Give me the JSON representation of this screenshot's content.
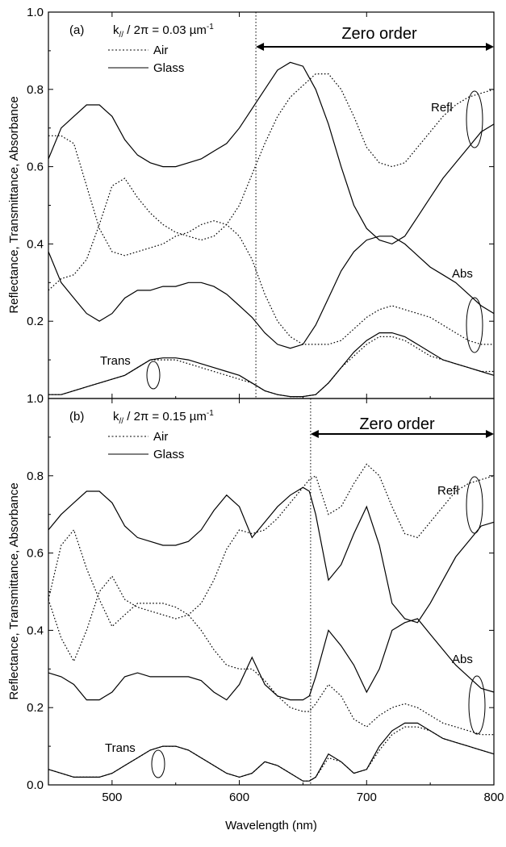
{
  "figure": {
    "y_axis_label": "Reflectance, Transmittance, Absorbance",
    "x_axis_label": "Wavelength (nm)"
  },
  "chart_data": [
    {
      "type": "line",
      "panel_label": "(a)",
      "k_label": "k// / 2π = 0.03 µm⁻¹",
      "k_label_parts": {
        "k": "k",
        "sub": "//",
        "rest": " / 2π = 0.03 µm",
        "sup": "-1"
      },
      "legend": [
        "Air",
        "Glass"
      ],
      "zero_order_label": "Zero order",
      "zero_order_start": 613,
      "xlim": [
        450,
        800
      ],
      "ylim": [
        0.0,
        1.0
      ],
      "y_ticks": [
        0.2,
        0.4,
        0.6,
        0.8,
        1.0
      ],
      "y_tick_labels": [
        "0.2",
        "0.4",
        "0.6",
        "0.8",
        "1.0"
      ],
      "bottom_tick_label": "1.0",
      "annotations": [
        "Refl",
        "Abs",
        "Trans"
      ],
      "series": [
        {
          "name": "Air",
          "quantity": "Refl",
          "style": "dotted",
          "x": [
            450,
            460,
            470,
            480,
            490,
            500,
            510,
            520,
            530,
            540,
            550,
            560,
            570,
            580,
            590,
            600,
            610,
            620,
            630,
            640,
            650,
            660,
            670,
            680,
            690,
            700,
            710,
            720,
            730,
            740,
            750,
            760,
            770,
            780,
            790,
            800
          ],
          "y": [
            0.28,
            0.31,
            0.32,
            0.36,
            0.45,
            0.55,
            0.57,
            0.52,
            0.48,
            0.45,
            0.43,
            0.42,
            0.41,
            0.42,
            0.45,
            0.5,
            0.58,
            0.66,
            0.73,
            0.78,
            0.81,
            0.84,
            0.84,
            0.8,
            0.73,
            0.65,
            0.61,
            0.6,
            0.61,
            0.65,
            0.69,
            0.73,
            0.76,
            0.78,
            0.79,
            0.8
          ]
        },
        {
          "name": "Air",
          "quantity": "Abs",
          "style": "dotted",
          "x": [
            450,
            460,
            470,
            480,
            490,
            500,
            510,
            520,
            530,
            540,
            550,
            560,
            570,
            580,
            590,
            600,
            610,
            620,
            630,
            640,
            650,
            660,
            670,
            680,
            690,
            700,
            710,
            720,
            730,
            740,
            750,
            760,
            770,
            780,
            790,
            800
          ],
          "y": [
            0.68,
            0.68,
            0.66,
            0.55,
            0.44,
            0.38,
            0.37,
            0.38,
            0.39,
            0.4,
            0.42,
            0.43,
            0.45,
            0.46,
            0.45,
            0.42,
            0.36,
            0.27,
            0.2,
            0.16,
            0.14,
            0.14,
            0.14,
            0.15,
            0.18,
            0.21,
            0.23,
            0.24,
            0.23,
            0.22,
            0.21,
            0.19,
            0.17,
            0.15,
            0.14,
            0.14
          ]
        },
        {
          "name": "Air",
          "quantity": "Trans",
          "style": "dotted",
          "x": [
            450,
            460,
            470,
            480,
            490,
            500,
            510,
            520,
            530,
            540,
            550,
            560,
            570,
            580,
            590,
            600,
            610,
            620,
            630,
            640,
            650,
            660,
            670,
            680,
            690,
            700,
            710,
            720,
            730,
            740,
            750,
            760,
            770,
            780,
            790,
            800
          ],
          "y": [
            0.01,
            0.01,
            0.02,
            0.03,
            0.04,
            0.05,
            0.06,
            0.08,
            0.1,
            0.1,
            0.1,
            0.09,
            0.08,
            0.07,
            0.06,
            0.05,
            0.04,
            0.02,
            0.01,
            0.005,
            0.005,
            0.01,
            0.04,
            0.08,
            0.11,
            0.14,
            0.16,
            0.16,
            0.15,
            0.13,
            0.11,
            0.1,
            0.09,
            0.08,
            0.07,
            0.07
          ]
        },
        {
          "name": "Glass",
          "quantity": "Refl",
          "style": "solid",
          "x": [
            450,
            460,
            470,
            480,
            490,
            500,
            510,
            520,
            530,
            540,
            550,
            560,
            570,
            580,
            590,
            600,
            610,
            620,
            630,
            640,
            650,
            660,
            670,
            680,
            690,
            700,
            710,
            720,
            730,
            740,
            750,
            760,
            770,
            780,
            790,
            800
          ],
          "y": [
            0.62,
            0.7,
            0.73,
            0.76,
            0.76,
            0.73,
            0.67,
            0.63,
            0.61,
            0.6,
            0.6,
            0.61,
            0.62,
            0.64,
            0.66,
            0.7,
            0.75,
            0.8,
            0.85,
            0.87,
            0.86,
            0.8,
            0.71,
            0.6,
            0.5,
            0.44,
            0.41,
            0.4,
            0.42,
            0.47,
            0.52,
            0.57,
            0.61,
            0.65,
            0.69,
            0.71
          ]
        },
        {
          "name": "Glass",
          "quantity": "Abs",
          "style": "solid",
          "x": [
            450,
            460,
            470,
            480,
            490,
            500,
            510,
            520,
            530,
            540,
            550,
            560,
            570,
            580,
            590,
            600,
            610,
            620,
            630,
            640,
            650,
            660,
            670,
            680,
            690,
            700,
            710,
            720,
            730,
            740,
            750,
            760,
            770,
            780,
            790,
            800
          ],
          "y": [
            0.38,
            0.3,
            0.26,
            0.22,
            0.2,
            0.22,
            0.26,
            0.28,
            0.28,
            0.29,
            0.29,
            0.3,
            0.3,
            0.29,
            0.27,
            0.24,
            0.21,
            0.17,
            0.14,
            0.13,
            0.14,
            0.19,
            0.26,
            0.33,
            0.38,
            0.41,
            0.42,
            0.42,
            0.4,
            0.37,
            0.34,
            0.32,
            0.3,
            0.27,
            0.24,
            0.22
          ]
        },
        {
          "name": "Glass",
          "quantity": "Trans",
          "style": "solid",
          "x": [
            450,
            460,
            470,
            480,
            490,
            500,
            510,
            520,
            530,
            540,
            550,
            560,
            570,
            580,
            590,
            600,
            610,
            620,
            630,
            640,
            650,
            660,
            670,
            680,
            690,
            700,
            710,
            720,
            730,
            740,
            750,
            760,
            770,
            780,
            790,
            800
          ],
          "y": [
            0.01,
            0.01,
            0.02,
            0.03,
            0.04,
            0.05,
            0.06,
            0.08,
            0.1,
            0.105,
            0.105,
            0.1,
            0.09,
            0.08,
            0.07,
            0.06,
            0.04,
            0.02,
            0.01,
            0.005,
            0.005,
            0.01,
            0.04,
            0.08,
            0.12,
            0.15,
            0.17,
            0.17,
            0.16,
            0.14,
            0.12,
            0.1,
            0.09,
            0.08,
            0.07,
            0.06
          ]
        }
      ]
    },
    {
      "type": "line",
      "panel_label": "(b)",
      "k_label": "k// / 2π = 0.15 µm⁻¹",
      "k_label_parts": {
        "k": "k",
        "sub": "//",
        "rest": " / 2π = 0.15 µm",
        "sup": "-1"
      },
      "legend": [
        "Air",
        "Glass"
      ],
      "zero_order_label": "Zero order",
      "zero_order_start": 656,
      "xlim": [
        450,
        800
      ],
      "ylim": [
        0.0,
        1.0
      ],
      "x_ticks": [
        500,
        600,
        700,
        800
      ],
      "x_tick_labels": [
        "500",
        "600",
        "700",
        "800"
      ],
      "y_ticks": [
        0.0,
        0.2,
        0.4,
        0.6,
        0.8
      ],
      "y_tick_labels": [
        "0.0",
        "0.2",
        "0.4",
        "0.6",
        "0.8"
      ],
      "annotations": [
        "Refl",
        "Abs",
        "Trans"
      ],
      "series": [
        {
          "name": "Air",
          "quantity": "Refl",
          "style": "dotted",
          "x": [
            450,
            460,
            470,
            480,
            490,
            500,
            510,
            520,
            530,
            540,
            550,
            560,
            570,
            580,
            590,
            600,
            610,
            620,
            630,
            640,
            650,
            655,
            660,
            670,
            680,
            690,
            700,
            710,
            720,
            730,
            740,
            750,
            760,
            770,
            780,
            790,
            800
          ],
          "y": [
            0.48,
            0.38,
            0.32,
            0.4,
            0.5,
            0.54,
            0.48,
            0.46,
            0.45,
            0.44,
            0.43,
            0.44,
            0.47,
            0.53,
            0.61,
            0.66,
            0.65,
            0.66,
            0.69,
            0.73,
            0.77,
            0.79,
            0.8,
            0.7,
            0.72,
            0.78,
            0.83,
            0.8,
            0.72,
            0.65,
            0.64,
            0.68,
            0.72,
            0.76,
            0.78,
            0.79,
            0.8
          ]
        },
        {
          "name": "Air",
          "quantity": "Abs",
          "style": "dotted",
          "x": [
            450,
            460,
            470,
            480,
            490,
            500,
            510,
            520,
            530,
            540,
            550,
            560,
            570,
            580,
            590,
            600,
            610,
            620,
            630,
            640,
            650,
            655,
            660,
            670,
            680,
            690,
            700,
            710,
            720,
            730,
            740,
            750,
            760,
            770,
            780,
            790,
            800
          ],
          "y": [
            0.48,
            0.62,
            0.66,
            0.56,
            0.48,
            0.41,
            0.44,
            0.47,
            0.47,
            0.47,
            0.46,
            0.44,
            0.4,
            0.35,
            0.31,
            0.3,
            0.3,
            0.27,
            0.23,
            0.2,
            0.19,
            0.19,
            0.21,
            0.26,
            0.23,
            0.17,
            0.15,
            0.18,
            0.2,
            0.21,
            0.2,
            0.18,
            0.16,
            0.15,
            0.14,
            0.13,
            0.13
          ]
        },
        {
          "name": "Air",
          "quantity": "Trans",
          "style": "dotted",
          "x": [
            450,
            460,
            470,
            480,
            490,
            500,
            510,
            520,
            530,
            540,
            550,
            560,
            570,
            580,
            590,
            600,
            610,
            620,
            630,
            640,
            650,
            655,
            660,
            670,
            680,
            690,
            700,
            710,
            720,
            730,
            740,
            750,
            760,
            770,
            780,
            790,
            800
          ],
          "y": [
            0.04,
            0.03,
            0.02,
            0.02,
            0.02,
            0.03,
            0.05,
            0.07,
            0.09,
            0.1,
            0.1,
            0.09,
            0.07,
            0.05,
            0.03,
            0.02,
            0.03,
            0.06,
            0.05,
            0.03,
            0.01,
            0.01,
            0.02,
            0.07,
            0.06,
            0.03,
            0.04,
            0.09,
            0.13,
            0.15,
            0.15,
            0.14,
            0.12,
            0.11,
            0.1,
            0.09,
            0.08
          ]
        },
        {
          "name": "Glass",
          "quantity": "Refl",
          "style": "solid",
          "x": [
            450,
            460,
            470,
            480,
            490,
            500,
            510,
            520,
            530,
            540,
            550,
            560,
            570,
            580,
            590,
            600,
            610,
            620,
            630,
            640,
            650,
            655,
            660,
            670,
            680,
            690,
            700,
            710,
            720,
            730,
            740,
            750,
            760,
            770,
            780,
            790,
            800
          ],
          "y": [
            0.66,
            0.7,
            0.73,
            0.76,
            0.76,
            0.73,
            0.67,
            0.64,
            0.63,
            0.62,
            0.62,
            0.63,
            0.66,
            0.71,
            0.75,
            0.72,
            0.64,
            0.68,
            0.72,
            0.75,
            0.77,
            0.76,
            0.7,
            0.53,
            0.57,
            0.65,
            0.72,
            0.62,
            0.47,
            0.43,
            0.42,
            0.47,
            0.53,
            0.59,
            0.63,
            0.67,
            0.68
          ]
        },
        {
          "name": "Glass",
          "quantity": "Abs",
          "style": "solid",
          "x": [
            450,
            460,
            470,
            480,
            490,
            500,
            510,
            520,
            530,
            540,
            550,
            560,
            570,
            580,
            590,
            600,
            610,
            620,
            630,
            640,
            650,
            655,
            660,
            670,
            680,
            690,
            700,
            710,
            720,
            730,
            740,
            750,
            760,
            770,
            780,
            790,
            800
          ],
          "y": [
            0.29,
            0.28,
            0.26,
            0.22,
            0.22,
            0.24,
            0.28,
            0.29,
            0.28,
            0.28,
            0.28,
            0.28,
            0.27,
            0.24,
            0.22,
            0.26,
            0.33,
            0.26,
            0.23,
            0.22,
            0.22,
            0.23,
            0.28,
            0.4,
            0.36,
            0.31,
            0.24,
            0.3,
            0.4,
            0.42,
            0.43,
            0.39,
            0.35,
            0.31,
            0.28,
            0.25,
            0.24
          ]
        },
        {
          "name": "Glass",
          "quantity": "Trans",
          "style": "solid",
          "x": [
            450,
            460,
            470,
            480,
            490,
            500,
            510,
            520,
            530,
            540,
            550,
            560,
            570,
            580,
            590,
            600,
            610,
            620,
            630,
            640,
            650,
            655,
            660,
            670,
            680,
            690,
            700,
            710,
            720,
            730,
            740,
            750,
            760,
            770,
            780,
            790,
            800
          ],
          "y": [
            0.04,
            0.03,
            0.02,
            0.02,
            0.02,
            0.03,
            0.05,
            0.07,
            0.09,
            0.1,
            0.1,
            0.09,
            0.07,
            0.05,
            0.03,
            0.02,
            0.03,
            0.06,
            0.05,
            0.03,
            0.01,
            0.01,
            0.02,
            0.08,
            0.06,
            0.03,
            0.04,
            0.1,
            0.14,
            0.16,
            0.16,
            0.14,
            0.12,
            0.11,
            0.1,
            0.09,
            0.08
          ]
        }
      ]
    }
  ]
}
